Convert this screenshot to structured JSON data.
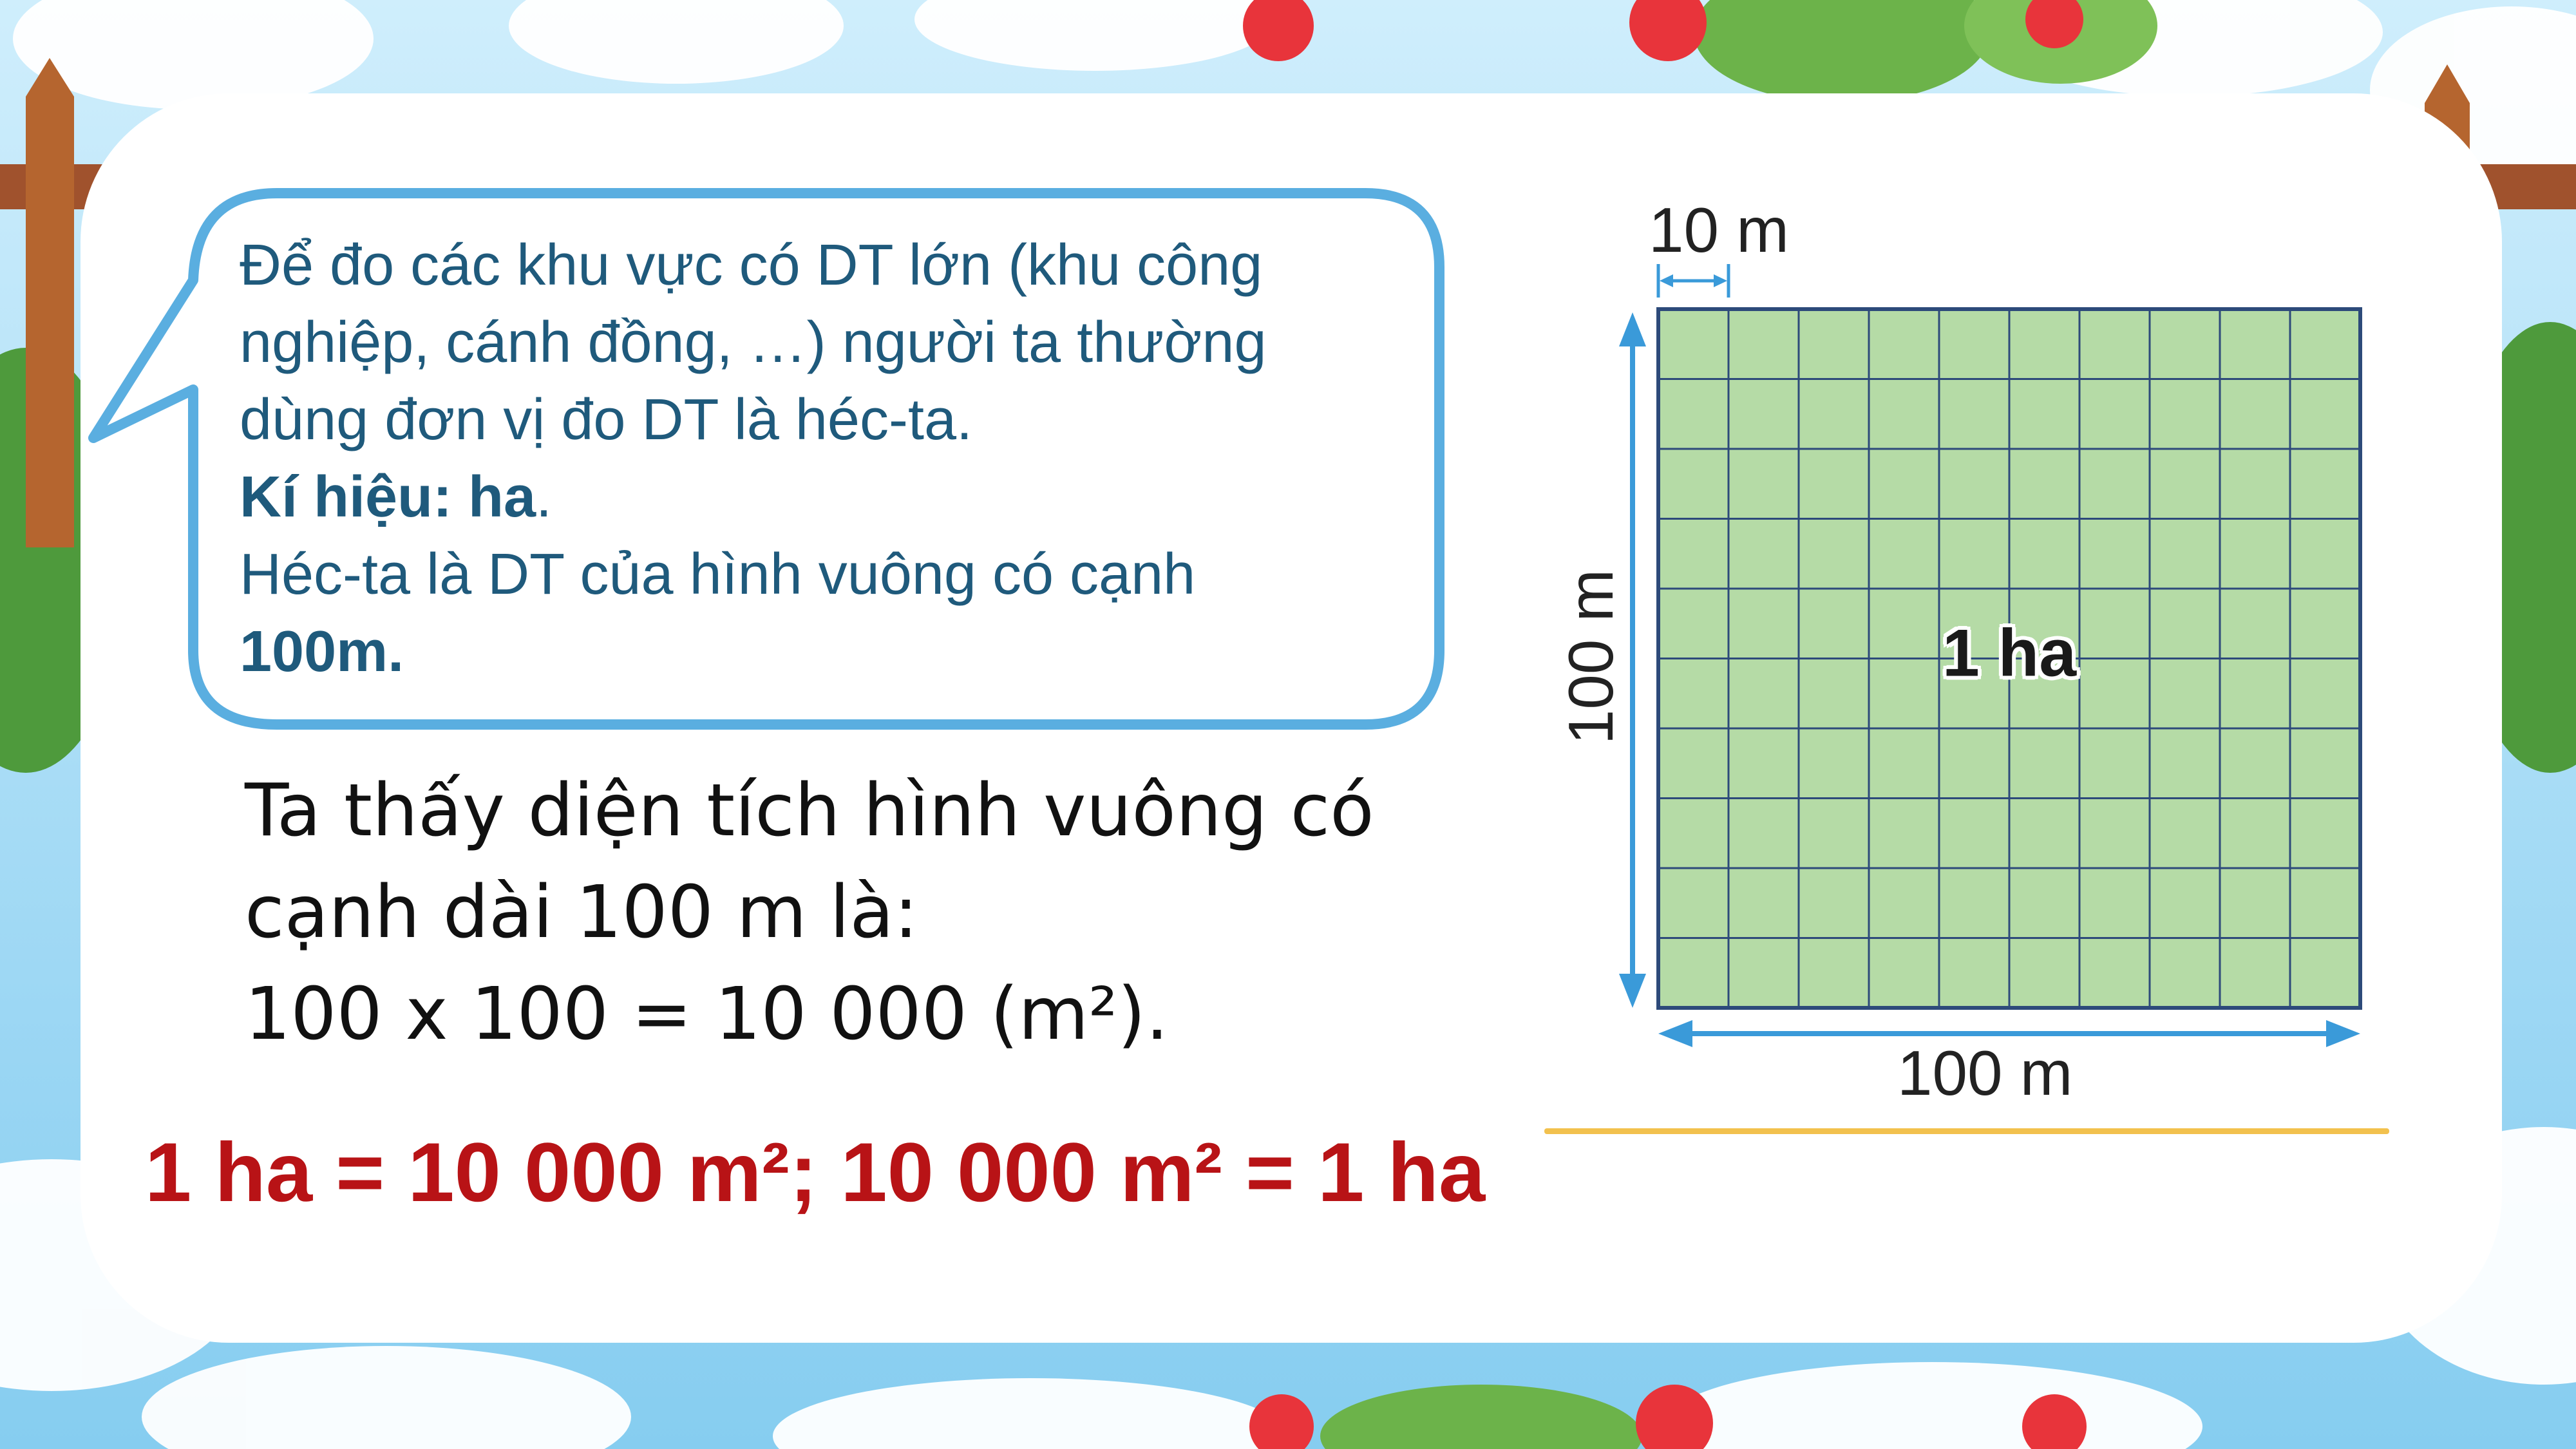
{
  "bubble": {
    "line1": "Để đo các khu vực có DT lớn (khu công",
    "line2": "nghiệp, cánh đồng, …) người ta thường",
    "line3": "dùng đơn vị đo DT là héc-ta.",
    "symbol_label": "Kí hiệu: ha",
    "symbol_end": ".",
    "definition": "Héc-ta là DT của hình vuông có cạnh",
    "definition_value": "100m."
  },
  "main_text": {
    "line1": "Ta thấy diện tích hình vuông có",
    "line2": "cạnh dài 100 m là:",
    "line3": "100 x 100 = 10 000 (m²)."
  },
  "result": "1 ha = 10 000 m²; 10 000 m² = 1 ha",
  "figure": {
    "top_label": "10 m",
    "left_label": "100 m",
    "bottom_label": "100 m",
    "center_label": "1 ha",
    "grid_divisions": 10
  },
  "colors": {
    "bubble_text": "#1f5a7c",
    "bubble_border": "#5aaee0",
    "result": "#b81316",
    "grid_fill": "#b5dba6",
    "grid_line": "#2d4a7a",
    "arrow": "#3a9ad9",
    "gold_line": "#f2c14e"
  }
}
